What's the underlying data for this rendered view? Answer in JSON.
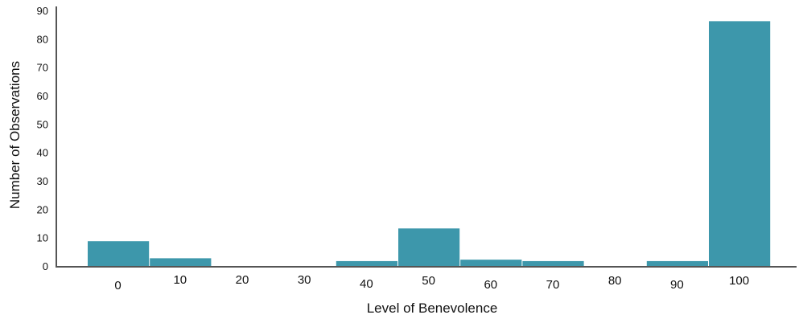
{
  "chart_data": {
    "type": "bar",
    "title": "",
    "xlabel": "Level of Benevolence",
    "ylabel": "Number of Observations",
    "categories": [
      "0",
      "10",
      "20",
      "30",
      "40",
      "50",
      "60",
      "70",
      "80",
      "90",
      "100"
    ],
    "values": [
      9,
      3,
      0,
      0,
      2,
      13.5,
      2.5,
      2,
      0,
      2,
      86.5
    ],
    "ylim": [
      0,
      90
    ],
    "yticks": [
      "0",
      "10",
      "20",
      "30",
      "40",
      "50",
      "60",
      "70",
      "80",
      "90"
    ],
    "bar_color": "#3d97ab",
    "axis_color": "#555555",
    "grid": false,
    "legend": "none"
  }
}
